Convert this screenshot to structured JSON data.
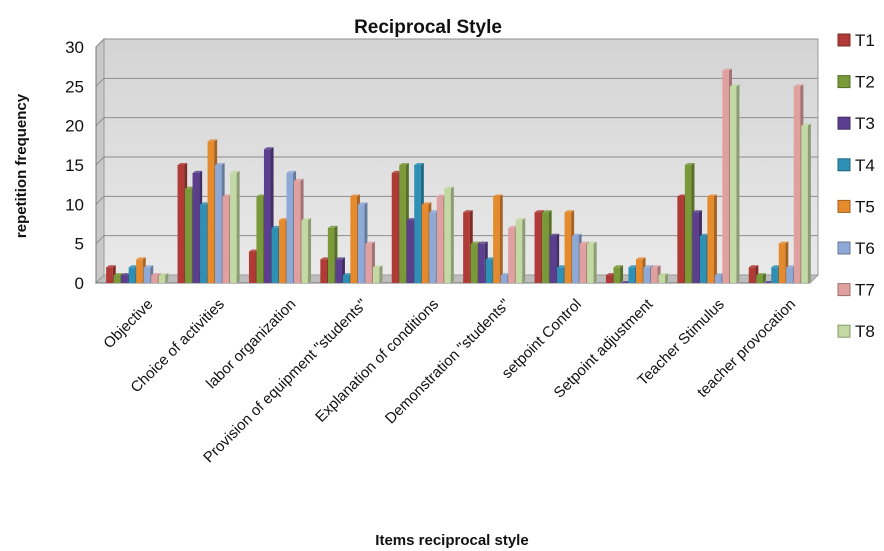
{
  "chart_data": {
    "type": "bar",
    "title": "Reciprocal Style",
    "xlabel": "Items reciprocal style",
    "ylabel": "repetition  frequency",
    "ylim": [
      0,
      30
    ],
    "yticks": [
      0,
      5,
      10,
      15,
      20,
      25,
      30
    ],
    "grid": true,
    "legend_position": "right",
    "categories": [
      "Objective",
      "Choice of activities",
      "labor organization",
      "Provision of equipment \"students\"",
      "Explanation of conditions",
      "Demonstration \"students\"",
      "setpoint Control",
      "Setpoint adjustment",
      "Teacher Stimulus",
      "teacher provocation"
    ],
    "series": [
      {
        "name": "T1",
        "color": "#b03a35",
        "values": [
          2,
          15,
          4,
          3,
          14,
          9,
          9,
          1,
          11,
          2
        ]
      },
      {
        "name": "T2",
        "color": "#7a9a3a",
        "values": [
          1,
          12,
          11,
          7,
          15,
          5,
          9,
          2,
          15,
          1
        ]
      },
      {
        "name": "T3",
        "color": "#5b3f8e",
        "values": [
          1,
          14,
          17,
          3,
          8,
          5,
          6,
          0,
          9,
          0
        ]
      },
      {
        "name": "T4",
        "color": "#2f90b5",
        "values": [
          2,
          10,
          7,
          1,
          15,
          3,
          2,
          2,
          6,
          2
        ]
      },
      {
        "name": "T5",
        "color": "#e68a2e",
        "values": [
          3,
          18,
          8,
          11,
          10,
          11,
          9,
          3,
          11,
          5
        ]
      },
      {
        "name": "T6",
        "color": "#8fa9d6",
        "values": [
          2,
          15,
          14,
          10,
          9,
          1,
          6,
          2,
          1,
          2
        ]
      },
      {
        "name": "T7",
        "color": "#e0a0a0",
        "values": [
          1,
          11,
          13,
          5,
          11,
          7,
          5,
          2,
          27,
          25
        ]
      },
      {
        "name": "T8",
        "color": "#c3d9a3",
        "values": [
          1,
          14,
          8,
          2,
          12,
          8,
          5,
          1,
          25,
          20
        ]
      }
    ]
  }
}
